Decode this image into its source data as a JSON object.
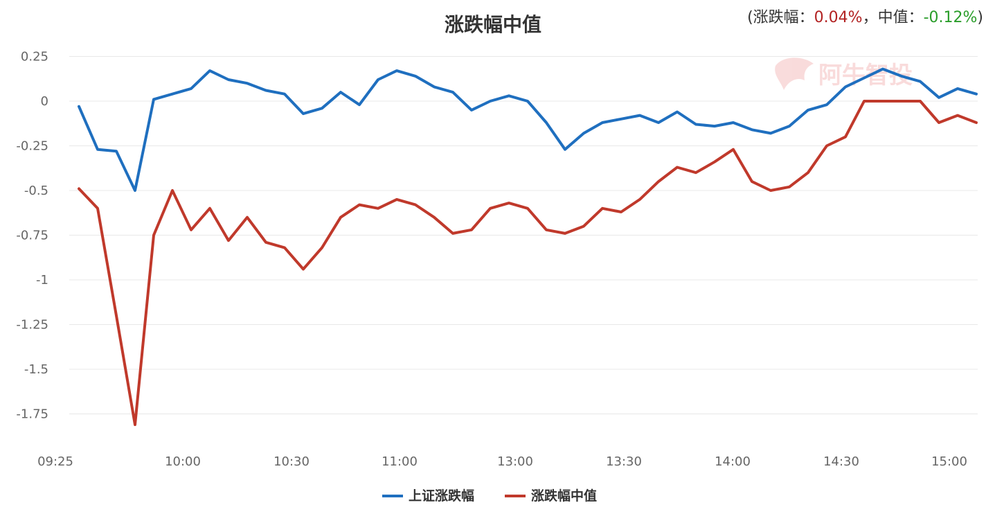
{
  "colors": {
    "up": "#b22222",
    "down": "#2a9d2a",
    "series1": "#1f6fbf",
    "series2": "#c0392b",
    "grid": "#e8e8e8"
  },
  "summary": {
    "open": "(",
    "label1": "涨跌幅：",
    "value1": "0.04%",
    "sep": "，中值：",
    "value2": "-0.12%",
    "close": ")"
  },
  "watermark": {
    "text": "阿牛智投"
  },
  "chart_data": {
    "type": "line",
    "title": "涨跌幅中值",
    "x": [
      "09:25",
      "09:35",
      "09:45",
      "09:55",
      "10:00",
      "10:05",
      "10:10",
      "10:15",
      "10:20",
      "10:25",
      "10:30",
      "10:35",
      "10:40",
      "10:45",
      "10:50",
      "10:55",
      "11:00",
      "11:05",
      "11:10",
      "11:15",
      "11:20",
      "11:25",
      "11:30",
      "13:00",
      "13:05",
      "13:10",
      "13:15",
      "13:20",
      "13:25",
      "13:30",
      "13:35",
      "13:40",
      "13:45",
      "13:50",
      "13:55",
      "14:00",
      "14:05",
      "14:10",
      "14:15",
      "14:20",
      "14:25",
      "14:30",
      "14:35",
      "14:40",
      "14:45",
      "14:50",
      "14:55",
      "15:00",
      "15:02"
    ],
    "xticks": [
      "09:25",
      "10:00",
      "10:30",
      "11:00",
      "13:00",
      "13:30",
      "14:00",
      "14:30",
      "15:00"
    ],
    "yticks": [
      0.25,
      0,
      -0.25,
      -0.5,
      -0.75,
      -1,
      -1.25,
      -1.5,
      -1.75
    ],
    "ytick_labels": [
      "0.25",
      "0",
      "-0.25",
      "-0.5",
      "-0.75",
      "-1",
      "-1.25",
      "-1.5",
      "-1.75"
    ],
    "ylim": [
      -1.95,
      0.3
    ],
    "legend_position": "bottom",
    "series": [
      {
        "name": "上证涨跌幅",
        "values": [
          -0.03,
          -0.27,
          -0.28,
          -0.5,
          0.01,
          0.04,
          0.07,
          0.17,
          0.12,
          0.1,
          0.06,
          0.04,
          -0.07,
          -0.04,
          0.05,
          -0.02,
          0.12,
          0.17,
          0.14,
          0.08,
          0.05,
          -0.05,
          0.0,
          0.03,
          0.0,
          -0.12,
          -0.27,
          -0.18,
          -0.12,
          -0.1,
          -0.08,
          -0.12,
          -0.06,
          -0.13,
          -0.14,
          -0.12,
          -0.16,
          -0.18,
          -0.14,
          -0.05,
          -0.02,
          0.08,
          0.13,
          0.18,
          0.14,
          0.11,
          0.02,
          0.07,
          0.04
        ]
      },
      {
        "name": "涨跌幅中值",
        "values": [
          -0.49,
          -0.6,
          -1.2,
          -1.81,
          -0.75,
          -0.5,
          -0.72,
          -0.6,
          -0.78,
          -0.65,
          -0.79,
          -0.82,
          -0.94,
          -0.82,
          -0.65,
          -0.58,
          -0.6,
          -0.55,
          -0.58,
          -0.65,
          -0.74,
          -0.72,
          -0.6,
          -0.57,
          -0.6,
          -0.72,
          -0.74,
          -0.7,
          -0.6,
          -0.62,
          -0.55,
          -0.45,
          -0.37,
          -0.4,
          -0.34,
          -0.27,
          -0.45,
          -0.5,
          -0.48,
          -0.4,
          -0.25,
          -0.2,
          0.0,
          0.0,
          0.0,
          0.0,
          -0.12,
          -0.08,
          -0.12
        ]
      }
    ]
  }
}
